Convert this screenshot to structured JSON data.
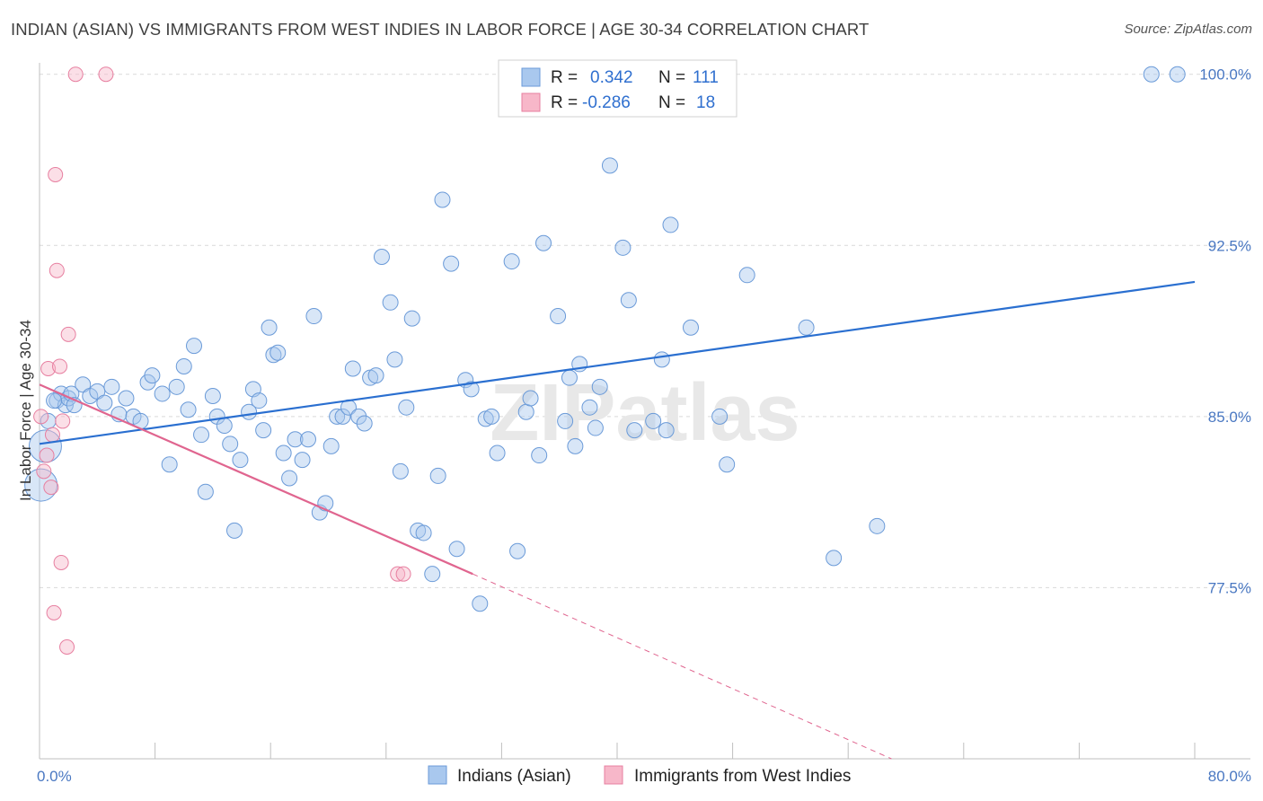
{
  "title": "INDIAN (ASIAN) VS IMMIGRANTS FROM WEST INDIES IN LABOR FORCE | AGE 30-34 CORRELATION CHART",
  "source": "Source: ZipAtlas.com",
  "watermark": "ZIPatlas",
  "colors": {
    "blue_fill": "#a9c8ee",
    "blue_stroke": "#6a9ad8",
    "blue_line": "#2a6fd0",
    "pink_fill": "#f7b7c9",
    "pink_stroke": "#e77fa0",
    "pink_line": "#e0658f",
    "tick_label": "#4a78c2",
    "grid": "#d9d9d9"
  },
  "legend": {
    "rows": [
      {
        "r_label": "R = ",
        "r_value": "0.342",
        "n_label": "N = ",
        "n_value": "111"
      },
      {
        "r_label": "R = ",
        "r_value": "-0.286",
        "n_label": "N = ",
        "n_value": "18"
      }
    ]
  },
  "bottom_legend": [
    "Indians (Asian)",
    "Immigrants from West Indies"
  ],
  "chart_data": {
    "type": "scatter",
    "title": "INDIAN (ASIAN) VS IMMIGRANTS FROM WEST INDIES IN LABOR FORCE | AGE 30-34 CORRELATION CHART",
    "xlabel": "",
    "ylabel": "In Labor Force | Age 30-34",
    "xlim": [
      0,
      80
    ],
    "ylim": [
      70,
      100.5
    ],
    "x_tick_labels": [
      "0.0%",
      "80.0%"
    ],
    "y_ticks": [
      77.5,
      85.0,
      92.5,
      100.0
    ],
    "y_tick_labels": [
      "77.5%",
      "85.0%",
      "92.5%",
      "100.0%"
    ],
    "grid": true,
    "series": [
      {
        "name": "Indians (Asian)",
        "color": "#a9c8ee",
        "trend": {
          "x": [
            0,
            80
          ],
          "y": [
            83.8,
            90.9
          ]
        },
        "points": [
          [
            0.1,
            82.0
          ],
          [
            0.4,
            83.7
          ],
          [
            0.6,
            84.8
          ],
          [
            1.2,
            85.7
          ],
          [
            1.5,
            86.0
          ],
          [
            1.8,
            85.5
          ],
          [
            2.0,
            85.8
          ],
          [
            2.2,
            86.0
          ],
          [
            2.4,
            85.5
          ],
          [
            3.0,
            86.4
          ],
          [
            3.5,
            85.9
          ],
          [
            4.0,
            86.1
          ],
          [
            4.5,
            85.6
          ],
          [
            5.0,
            86.3
          ],
          [
            5.5,
            85.1
          ],
          [
            6.0,
            85.8
          ],
          [
            6.5,
            85.0
          ],
          [
            7.0,
            84.8
          ],
          [
            7.5,
            86.5
          ],
          [
            7.8,
            86.8
          ],
          [
            8.5,
            86.0
          ],
          [
            9.0,
            82.9
          ],
          [
            9.5,
            86.3
          ],
          [
            10.0,
            87.2
          ],
          [
            10.3,
            85.3
          ],
          [
            10.7,
            88.1
          ],
          [
            11.2,
            84.2
          ],
          [
            11.5,
            81.7
          ],
          [
            12.0,
            85.9
          ],
          [
            12.3,
            85.0
          ],
          [
            12.8,
            84.6
          ],
          [
            13.2,
            83.8
          ],
          [
            13.5,
            80.0
          ],
          [
            13.9,
            83.1
          ],
          [
            14.5,
            85.2
          ],
          [
            14.8,
            86.2
          ],
          [
            15.2,
            85.7
          ],
          [
            15.5,
            84.4
          ],
          [
            15.9,
            88.9
          ],
          [
            16.2,
            87.7
          ],
          [
            16.5,
            87.8
          ],
          [
            16.9,
            83.4
          ],
          [
            17.3,
            82.3
          ],
          [
            17.7,
            84.0
          ],
          [
            18.2,
            83.1
          ],
          [
            18.6,
            84.0
          ],
          [
            19.0,
            89.4
          ],
          [
            19.4,
            80.8
          ],
          [
            19.8,
            81.2
          ],
          [
            20.2,
            83.7
          ],
          [
            20.6,
            85.0
          ],
          [
            21.0,
            85.0
          ],
          [
            21.4,
            85.4
          ],
          [
            21.7,
            87.1
          ],
          [
            22.1,
            85.0
          ],
          [
            22.5,
            84.7
          ],
          [
            22.9,
            86.7
          ],
          [
            23.3,
            86.8
          ],
          [
            23.7,
            92.0
          ],
          [
            24.3,
            90.0
          ],
          [
            24.6,
            87.5
          ],
          [
            25.0,
            82.6
          ],
          [
            25.4,
            85.4
          ],
          [
            25.8,
            89.3
          ],
          [
            26.2,
            80.0
          ],
          [
            26.6,
            79.9
          ],
          [
            27.2,
            78.1
          ],
          [
            27.6,
            82.4
          ],
          [
            27.9,
            94.5
          ],
          [
            28.5,
            91.7
          ],
          [
            28.9,
            79.2
          ],
          [
            29.5,
            86.6
          ],
          [
            29.9,
            86.2
          ],
          [
            30.5,
            76.8
          ],
          [
            30.9,
            84.9
          ],
          [
            31.3,
            85.0
          ],
          [
            31.7,
            83.4
          ],
          [
            32.7,
            91.8
          ],
          [
            33.1,
            79.1
          ],
          [
            33.7,
            85.2
          ],
          [
            34.0,
            85.8
          ],
          [
            34.6,
            83.3
          ],
          [
            34.9,
            92.6
          ],
          [
            35.9,
            89.4
          ],
          [
            36.4,
            84.8
          ],
          [
            36.7,
            86.7
          ],
          [
            37.1,
            83.7
          ],
          [
            37.4,
            87.3
          ],
          [
            38.1,
            85.4
          ],
          [
            38.5,
            84.5
          ],
          [
            38.8,
            86.3
          ],
          [
            39.5,
            96.0
          ],
          [
            40.4,
            92.4
          ],
          [
            40.8,
            90.1
          ],
          [
            41.2,
            84.4
          ],
          [
            42.5,
            84.8
          ],
          [
            43.1,
            87.5
          ],
          [
            43.4,
            84.4
          ],
          [
            43.7,
            93.4
          ],
          [
            45.1,
            88.9
          ],
          [
            47.1,
            85.0
          ],
          [
            47.6,
            82.9
          ],
          [
            49.0,
            91.2
          ],
          [
            53.1,
            88.9
          ],
          [
            55.0,
            78.8
          ],
          [
            58.0,
            80.2
          ],
          [
            47.0,
            100.0
          ],
          [
            77.0,
            100.0
          ],
          [
            78.8,
            100.0
          ],
          [
            1.0,
            85.7
          ]
        ]
      },
      {
        "name": "Immigrants from West Indies",
        "color": "#f7b7c9",
        "trend": {
          "x": [
            0,
            30.0
          ],
          "y": [
            86.4,
            78.1
          ]
        },
        "trend_dashed": {
          "x": [
            30.0,
            59.0
          ],
          "y": [
            78.1,
            70.0
          ]
        },
        "points": [
          [
            0.1,
            85.0
          ],
          [
            0.3,
            82.6
          ],
          [
            0.5,
            83.3
          ],
          [
            0.6,
            87.1
          ],
          [
            0.8,
            81.9
          ],
          [
            1.0,
            76.4
          ],
          [
            1.1,
            95.6
          ],
          [
            1.2,
            91.4
          ],
          [
            1.4,
            87.2
          ],
          [
            1.5,
            78.6
          ],
          [
            1.6,
            84.8
          ],
          [
            1.9,
            74.9
          ],
          [
            2.0,
            88.6
          ],
          [
            2.5,
            100.0
          ],
          [
            4.6,
            100.0
          ],
          [
            24.8,
            78.1
          ],
          [
            25.2,
            78.1
          ],
          [
            0.9,
            84.2
          ]
        ]
      }
    ]
  }
}
